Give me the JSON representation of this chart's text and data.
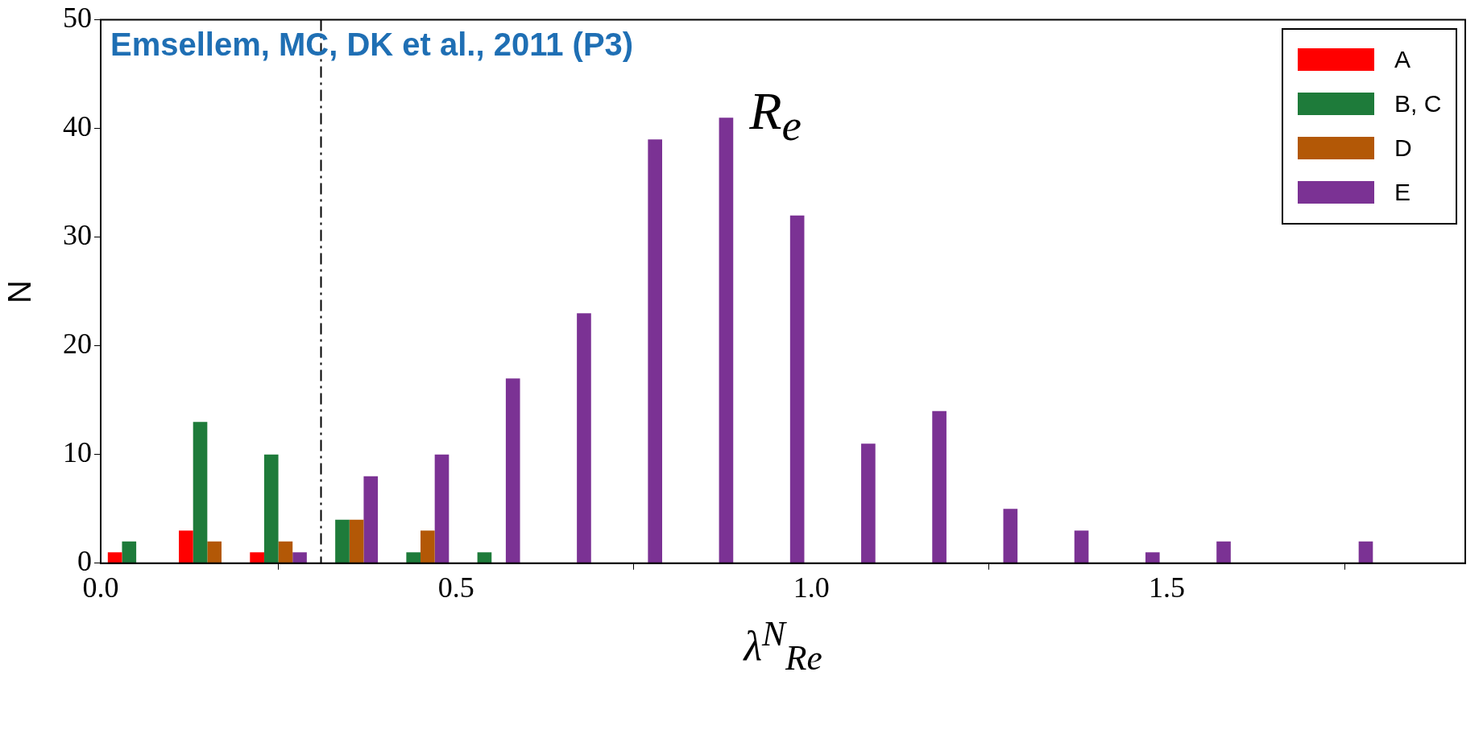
{
  "chart_data": {
    "type": "histogram",
    "xlabel": "λ$^{N}$$_{Re}$",
    "ylabel": "N",
    "bins": [
      0,
      0.1,
      0.2,
      0.3,
      0.4,
      0.5,
      0.6,
      0.7,
      0.8,
      0.9,
      1.0,
      1.1,
      1.2,
      1.3,
      1.4,
      1.5,
      1.6,
      1.7,
      1.8,
      1.9
    ],
    "series": [
      {
        "name": "A",
        "color": "#ff0000",
        "values": [
          1,
          3,
          1,
          0,
          0,
          0,
          0,
          0,
          0,
          0,
          0,
          0,
          0,
          0,
          0,
          0,
          0,
          0,
          0
        ]
      },
      {
        "name": "B, C",
        "color": "#1e7b3a",
        "values": [
          2,
          13,
          10,
          4,
          1,
          1,
          0,
          0,
          0,
          0,
          0,
          0,
          0,
          0,
          0,
          0,
          0,
          0,
          0
        ]
      },
      {
        "name": "D",
        "color": "#b35806",
        "values": [
          0,
          2,
          2,
          4,
          3,
          0,
          0,
          0,
          0,
          0,
          0,
          0,
          0,
          0,
          0,
          0,
          0,
          0,
          0
        ]
      },
      {
        "name": "E",
        "color": "#7b3294",
        "values": [
          0,
          0,
          1,
          8,
          10,
          17,
          23,
          39,
          41,
          32,
          11,
          14,
          5,
          3,
          1,
          2,
          0,
          2,
          0
        ]
      }
    ],
    "xlim": [
      0,
      1.92
    ],
    "xticks": [
      {
        "value": 0,
        "label": "0.0"
      },
      {
        "value": 0.5,
        "label": "0.5"
      },
      {
        "value": 1,
        "label": "1.0"
      },
      {
        "value": 1.5,
        "label": "1.5"
      }
    ],
    "ylim": [
      0,
      50
    ],
    "yticks": [
      0,
      10,
      20,
      30,
      40,
      50
    ],
    "ref_lines": [
      {
        "axis": "x",
        "value": 0.31,
        "color": "#000000",
        "line_style": "dashed"
      }
    ],
    "annotations": [
      "Emsellem, MC, DK et al., 2011 (P3)",
      "R$_{e}$"
    ],
    "grid": false,
    "legend": "top right"
  }
}
